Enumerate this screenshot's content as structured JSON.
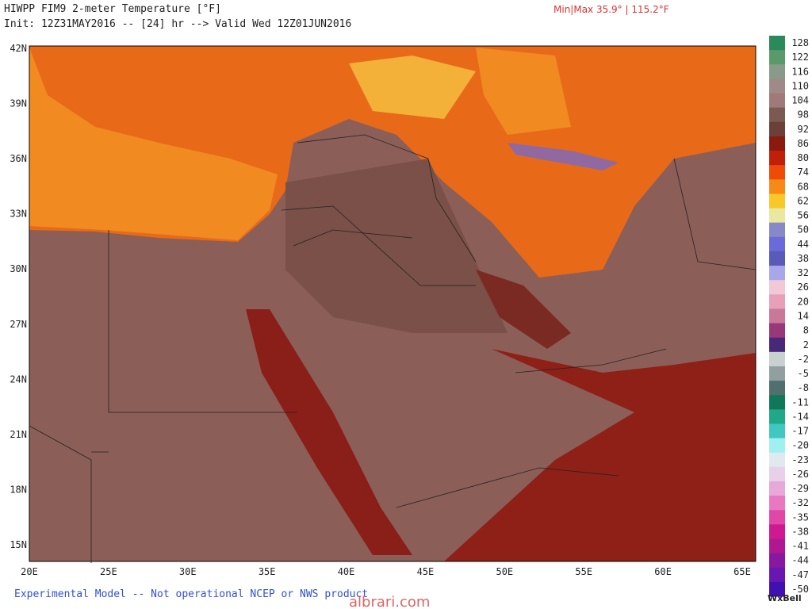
{
  "header": {
    "title": "HIWPP FIM9 2-meter Temperature [°F]",
    "init": "Init: 12Z31MAY2016 -- [24] hr --> Valid Wed 12Z01JUN2016",
    "minmax": "Min|Max 35.9° | 115.2°F"
  },
  "map": {
    "lat_labels": [
      "42N",
      "39N",
      "36N",
      "33N",
      "30N",
      "27N",
      "24N",
      "21N",
      "18N",
      "15N"
    ],
    "lon_labels": [
      "20E",
      "25E",
      "30E",
      "35E",
      "40E",
      "45E",
      "50E",
      "55E",
      "60E",
      "65E"
    ]
  },
  "colorbar": [
    {
      "label": 128,
      "color": "#2a8a5a"
    },
    {
      "label": 122,
      "color": "#5a9a6a"
    },
    {
      "label": 116,
      "color": "#8a9a8a"
    },
    {
      "label": 110,
      "color": "#a08a88"
    },
    {
      "label": 104,
      "color": "#a07a78"
    },
    {
      "label": 98,
      "color": "#7a5a52"
    },
    {
      "label": 92,
      "color": "#6a4038"
    },
    {
      "label": 86,
      "color": "#8a1a10"
    },
    {
      "label": 80,
      "color": "#c02008"
    },
    {
      "label": 74,
      "color": "#f04a08"
    },
    {
      "label": 68,
      "color": "#f88818"
    },
    {
      "label": 62,
      "color": "#f8c828"
    },
    {
      "label": 56,
      "color": "#e8e8a0"
    },
    {
      "label": 50,
      "color": "#8888c8"
    },
    {
      "label": 44,
      "color": "#6a6ad8"
    },
    {
      "label": 38,
      "color": "#5a5ab8"
    },
    {
      "label": 32,
      "color": "#a8a8e8"
    },
    {
      "label": 26,
      "color": "#f0c8d8"
    },
    {
      "label": 20,
      "color": "#e8a0b8"
    },
    {
      "label": 14,
      "color": "#c87898"
    },
    {
      "label": 8,
      "color": "#983878"
    },
    {
      "label": 2,
      "color": "#482878"
    },
    {
      "label": -2,
      "color": "#c8d0d0"
    },
    {
      "label": -5,
      "color": "#90a0a0"
    },
    {
      "label": -8,
      "color": "#507070"
    },
    {
      "label": -11,
      "color": "#107858"
    },
    {
      "label": -14,
      "color": "#20a888"
    },
    {
      "label": -17,
      "color": "#40c8c0"
    },
    {
      "label": -20,
      "color": "#a0f0f0"
    },
    {
      "label": -23,
      "color": "#e0e8f0"
    },
    {
      "label": -26,
      "color": "#e8d0e8"
    },
    {
      "label": -29,
      "color": "#e8a8d8"
    },
    {
      "label": -32,
      "color": "#e878c0"
    },
    {
      "label": -35,
      "color": "#e048a8"
    },
    {
      "label": -38,
      "color": "#d01890"
    },
    {
      "label": -41,
      "color": "#b01890"
    },
    {
      "label": -44,
      "color": "#8818a0"
    },
    {
      "label": -47,
      "color": "#6818b0"
    },
    {
      "label": -50,
      "color": "#4010b0"
    }
  ],
  "footer": {
    "note": "Experimental Model -- Not operational NCEP or NWS product",
    "brand": "WxBell",
    "watermark": "albrari.com"
  }
}
